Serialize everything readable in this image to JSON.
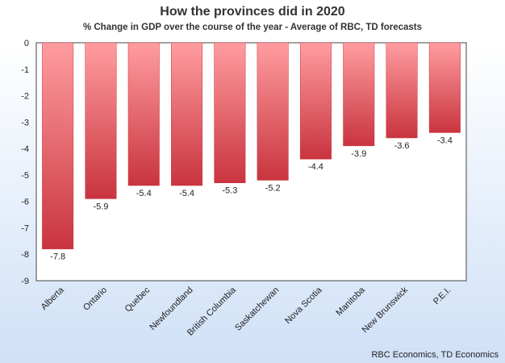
{
  "chart_data": {
    "type": "bar",
    "title": "How the provinces did in 2020",
    "subtitle": "% Change in GDP over the course of the year - Average of RBC, TD forecasts",
    "categories": [
      "Alberta",
      "Ontario",
      "Quebec",
      "Newfoundland",
      "British Columbia",
      "Saskatchewan",
      "Nova Scotia",
      "Manitoba",
      "New Brunswick",
      "P.E.I."
    ],
    "values": [
      -7.8,
      -5.9,
      -5.4,
      -5.4,
      -5.3,
      -5.2,
      -4.4,
      -3.9,
      -3.6,
      -3.4
    ],
    "data_labels": [
      "-7.8",
      "-5.9",
      "-5.4",
      "-5.4",
      "-5.3",
      "-5.2",
      "-4.4",
      "-3.9",
      "-3.6",
      "-3.4"
    ],
    "y_ticks": [
      0,
      -1,
      -2,
      -3,
      -4,
      -5,
      -6,
      -7,
      -8,
      -9
    ],
    "y_tick_labels": [
      "0",
      "-1",
      "-2",
      "-3",
      "-4",
      "-5",
      "-6",
      "-7",
      "-8",
      "-9"
    ],
    "ylim": [
      -9,
      0
    ],
    "xlabel": "",
    "ylabel": "",
    "grid": false,
    "legend": "none",
    "bar_color_top": "#ff9da0",
    "bar_color_bottom": "#c9343f"
  },
  "source": "RBC Economics, TD Economics"
}
